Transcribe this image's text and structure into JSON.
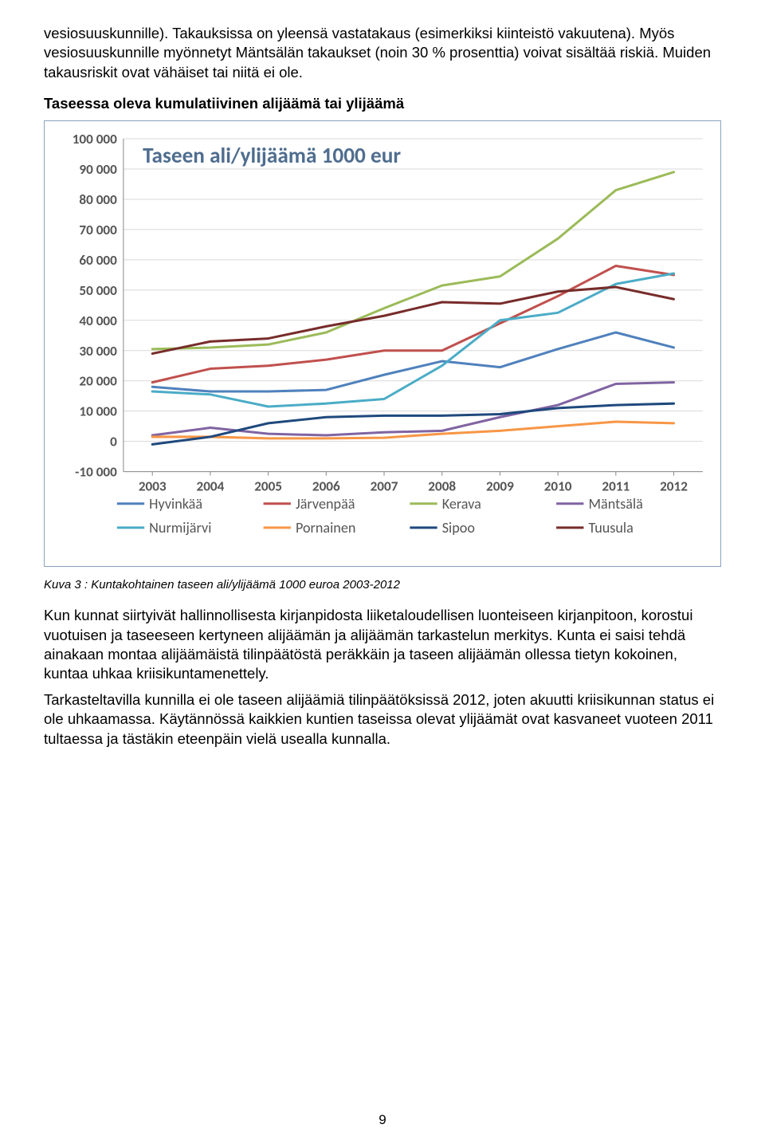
{
  "paragraph1": "vesiosuuskunnille). Takauksissa on yleensä vastatakaus (esimerkiksi kiinteistö vakuutena). Myös vesiosuuskunnille myönnetyt Mäntsälän takaukset (noin 30 % prosenttia) voivat sisältää riskiä. Muiden takausriskit ovat vähäiset tai niitä ei ole.",
  "heading": "Taseessa oleva kumulatiivinen alijäämä tai ylijäämä",
  "caption": "Kuva 3 : Kuntakohtainen taseen ali/ylijäämä 1000 euroa 2003-2012",
  "paragraph2": "Kun kunnat siirtyivät hallinnollisesta kirjanpidosta liiketaloudellisen luonteiseen kirjanpitoon, korostui vuotuisen ja taseeseen kertyneen alijäämän ja alijäämän tarkastelun merkitys. Kunta ei saisi tehdä ainakaan montaa alijäämäistä tilinpäätöstä peräkkäin ja taseen alijäämän ollessa tietyn kokoinen, kuntaa uhkaa kriisikuntamenettely.",
  "paragraph3": "Tarkasteltavilla kunnilla ei ole taseen alijäämiä tilinpäätöksissä 2012, joten akuutti kriisikunnan status ei ole uhkaamassa. Käytännössä kaikkien kuntien taseissa olevat ylijäämät ovat kasvaneet vuoteen 2011 tultaessa ja tästäkin eteenpäin vielä usealla kunnalla.",
  "page_number": "9",
  "chart": {
    "type": "line",
    "title": "Taseen ali/ylijäämä 1000 eur",
    "title_fontsize": 27,
    "title_color": "#4f6d8f",
    "title_weight": "bold",
    "background_color": "#ffffff",
    "plot_background": "#ffffff",
    "border_color": "#8aa2bf",
    "grid_color": "#d9d9d9",
    "axis_color": "#888888",
    "axis_label_color": "#555555",
    "axis_fontsize": 17,
    "line_width": 3,
    "x": [
      "2003",
      "2004",
      "2005",
      "2006",
      "2007",
      "2008",
      "2009",
      "2010",
      "2011",
      "2012"
    ],
    "ylim": [
      -10000,
      100000
    ],
    "ytick_step": 10000,
    "yticks": [
      "-10 000",
      "0",
      "10 000",
      "20 000",
      "30 000",
      "40 000",
      "50 000",
      "60 000",
      "70 000",
      "80 000",
      "90 000",
      "100 000"
    ],
    "series": [
      {
        "name": "Hyvinkää",
        "color": "#4f81bd",
        "values": [
          18000,
          16500,
          16500,
          17000,
          22000,
          26500,
          24500,
          30500,
          36000,
          31000
        ]
      },
      {
        "name": "Järvenpää",
        "color": "#c0504d",
        "values": [
          19500,
          24000,
          25000,
          27000,
          30000,
          30000,
          39000,
          48000,
          58000,
          55000
        ]
      },
      {
        "name": "Kerava",
        "color": "#9bbb59",
        "values": [
          30500,
          31000,
          32000,
          36000,
          44000,
          51500,
          54500,
          67000,
          83000,
          89000
        ]
      },
      {
        "name": "Mäntsälä",
        "color": "#8064a2",
        "values": [
          2000,
          4500,
          2500,
          2000,
          3000,
          3500,
          8000,
          12000,
          19000,
          19500
        ]
      },
      {
        "name": "Nurmijärvi",
        "color": "#4bacc6",
        "values": [
          16500,
          15500,
          11500,
          12500,
          14000,
          25000,
          40000,
          42500,
          52000,
          55500
        ]
      },
      {
        "name": "Pornainen",
        "color": "#f79646",
        "values": [
          1500,
          1500,
          1000,
          1000,
          1200,
          2500,
          3500,
          5000,
          6500,
          6000
        ]
      },
      {
        "name": "Sipoo",
        "color": "#1f497d",
        "values": [
          -1000,
          1500,
          6000,
          8000,
          8500,
          8500,
          9000,
          11000,
          12000,
          12500
        ]
      },
      {
        "name": "Tuusula",
        "color": "#772c2a",
        "values": [
          29000,
          33000,
          34000,
          38000,
          41500,
          46000,
          45500,
          49500,
          51000,
          47000
        ]
      }
    ],
    "legend": {
      "fontsize": 18,
      "font_family": "Calibri, Arial, sans-serif",
      "text_color": "#555555",
      "row1": [
        "Hyvinkää",
        "Järvenpää",
        "Kerava",
        "Mäntsälä"
      ],
      "row2": [
        "Nurmijärvi",
        "Pornainen",
        "Sipoo",
        "Tuusula"
      ]
    }
  }
}
